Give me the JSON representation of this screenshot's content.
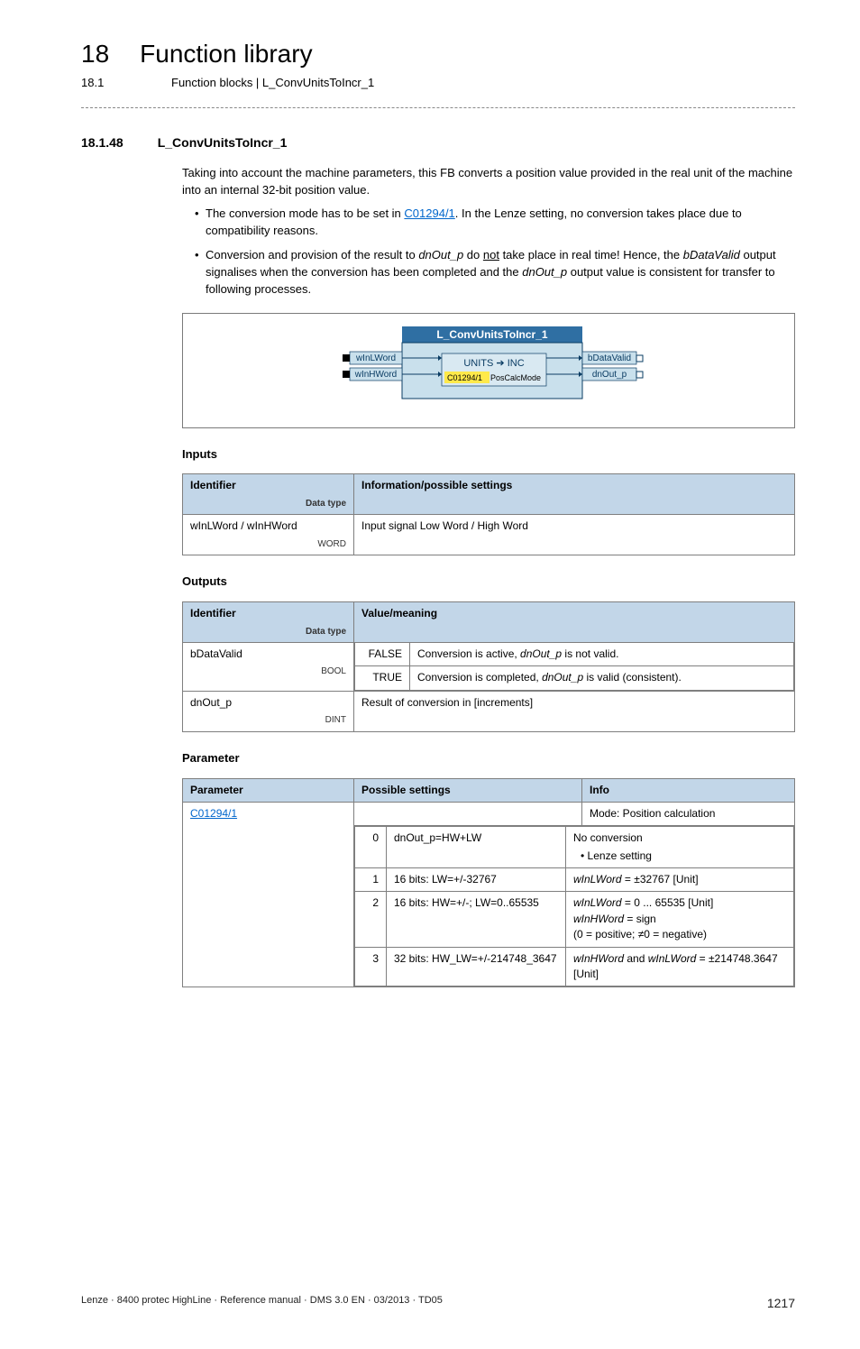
{
  "header": {
    "chapter_num": "18",
    "chapter_title": "Function library",
    "sub_num": "18.1",
    "sub_title": "Function blocks | L_ConvUnitsToIncr_1"
  },
  "section": {
    "num": "18.1.48",
    "title": "L_ConvUnitsToIncr_1"
  },
  "intro": {
    "p1": "Taking into account the machine parameters, this FB converts a position value provided in the real unit of the machine into an internal 32-bit position value.",
    "b1_a": "The conversion mode has to be set in ",
    "b1_link": "C01294/1",
    "b1_b": ". In the Lenze setting, no conversion takes place due to compatibility reasons.",
    "b2_a": "Conversion and provision of the result to ",
    "b2_var1": "dnOut_p",
    "b2_b": " do ",
    "b2_not": "not",
    "b2_c": " take place in real time! Hence, the ",
    "b2_var2": "bDataValid",
    "b2_d": " output signalises when the conversion has been completed and the ",
    "b2_var3": "dnOut_p",
    "b2_e": " output value is consistent for transfer to following processes."
  },
  "diagram": {
    "block_title": "L_ConvUnitsToIncr_1",
    "in_top": "wInLWord",
    "in_bot": "wInHWord",
    "inner_top": "UNITS ➔ INC",
    "inner_code": "C01294/1",
    "inner_lbl": " PosCalcMode",
    "out_top": "bDataValid",
    "out_bot": "dnOut_p",
    "colors": {
      "title_bg": "#2f6fa3",
      "title_fg": "#ffffff",
      "block_bg": "#c9e0ec",
      "io_bg": "#c9e0ec",
      "inner_bg": "#d9e9f2",
      "code_bg": "#ffe94a",
      "outline": "#0a3c63"
    }
  },
  "inputs": {
    "heading": "Inputs",
    "col_id": "Identifier",
    "col_info": "Information/possible settings",
    "dtlabel": "Data type",
    "row1_id": "wInLWord / wInHWord",
    "row1_dt": "WORD",
    "row1_info": "Input signal Low Word / High Word"
  },
  "outputs": {
    "heading": "Outputs",
    "col_id": "Identifier",
    "col_val": "Value/meaning",
    "dtlabel": "Data type",
    "r1_id": "bDataValid",
    "r1_dt": "BOOL",
    "r1_false_k": "FALSE",
    "r1_false_v_a": "Conversion is active, ",
    "r1_false_v_b": "dnOut_p",
    "r1_false_v_c": " is not valid.",
    "r1_true_k": "TRUE",
    "r1_true_v_a": "Conversion is completed, ",
    "r1_true_v_b": "dnOut_p",
    "r1_true_v_c": " is valid (consistent).",
    "r2_id": "dnOut_p",
    "r2_dt": "DINT",
    "r2_val": "Result of conversion in [increments]"
  },
  "params": {
    "heading": "Parameter",
    "col_p": "Parameter",
    "col_s": "Possible settings",
    "col_i": "Info",
    "link": "C01294/1",
    "mode": "Mode: Position calculation",
    "rows": [
      {
        "n": "0",
        "s": "dnOut_p=HW+LW",
        "i_main": "No conversion",
        "i_sub": "Lenze setting"
      },
      {
        "n": "1",
        "s": "16 bits: LW=+/-32767",
        "i": "<i>wInLWord</i> = ±32767 [Unit]"
      },
      {
        "n": "2",
        "s": "16 bits: HW=+/-; LW=0..65535",
        "i": "<i>wInLWord</i> = 0 ... 65535 [Unit]<br><i>wInHWord</i> = sign<br>(0 = positive; ≠0 = negative)"
      },
      {
        "n": "3",
        "s": "32 bits: HW_LW=+/-214748_3647",
        "i": "<i>wInHWord</i> and <i>wInLWord</i> = ±214748.3647 [Unit]"
      }
    ]
  },
  "footer": {
    "left": "Lenze · 8400 protec HighLine · Reference manual · DMS 3.0 EN · 03/2013 · TD05",
    "page": "1217"
  }
}
